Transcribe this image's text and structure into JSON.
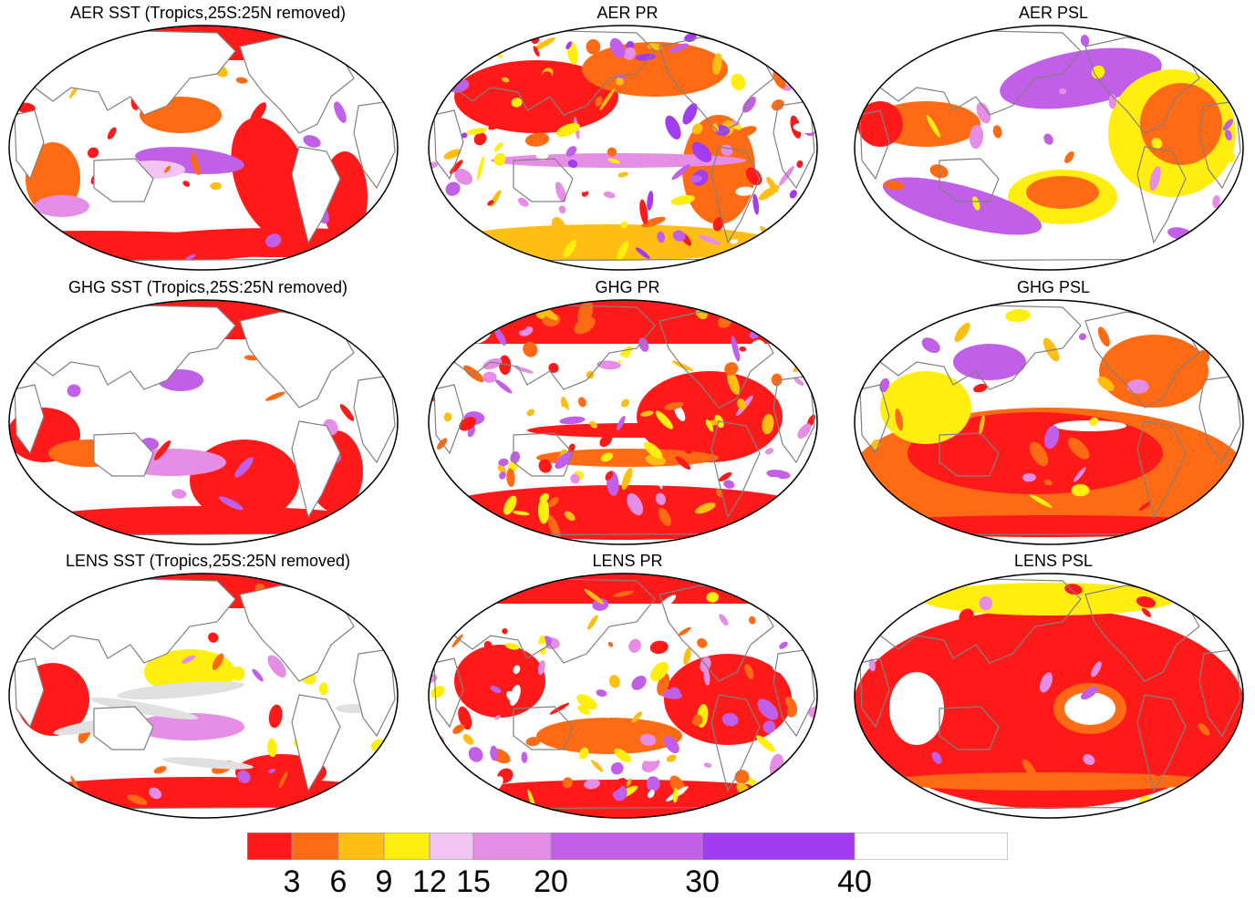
{
  "panels": [
    {
      "title": "AER SST (Tropics,25S:25N removed)"
    },
    {
      "title": "AER PR"
    },
    {
      "title": "AER PSL"
    },
    {
      "title": "GHG SST (Tropics,25S:25N removed)"
    },
    {
      "title": "GHG PR"
    },
    {
      "title": "GHG PSL"
    },
    {
      "title": "LENS SST (Tropics,25S:25N removed)"
    },
    {
      "title": "LENS PR"
    },
    {
      "title": "LENS PSL"
    }
  ],
  "colorbar": {
    "labels": [
      "3",
      "6",
      "9",
      "12",
      "15",
      "20",
      "30",
      "40"
    ],
    "colors": [
      "#ff1a1a",
      "#ff6a14",
      "#ffbe14",
      "#ffee10",
      "#f2c4f2",
      "#e68ee6",
      "#c15fe8",
      "#a13cf0",
      "#ffffff"
    ],
    "bounds": [
      0,
      3,
      6,
      9,
      12,
      15,
      20,
      30,
      40,
      50
    ]
  },
  "colors": {
    "land": "#ffffff",
    "coast": "#808080",
    "masked": "#e0e0e0"
  }
}
